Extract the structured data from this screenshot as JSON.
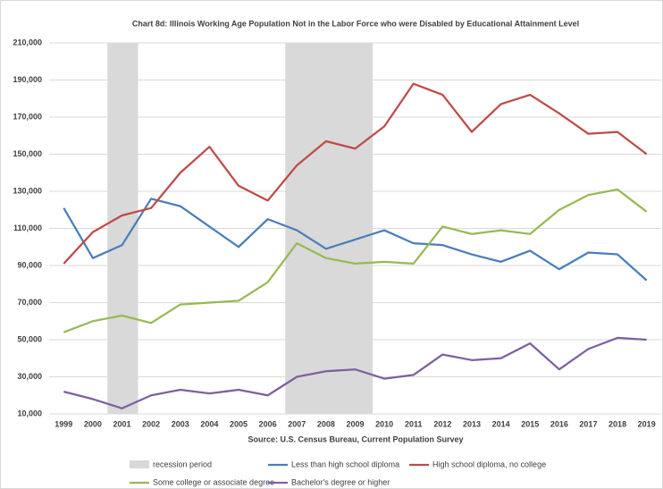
{
  "chart_data": {
    "type": "line",
    "title": "Chart 8d:  Illinois Working Age Population Not in the Labor Force who were Disabled by Educational Attainment Level",
    "source": "Source: U.S. Census Bureau, Current Population Survey",
    "x": [
      1999,
      2000,
      2001,
      2002,
      2003,
      2004,
      2005,
      2006,
      2007,
      2008,
      2009,
      2010,
      2011,
      2012,
      2013,
      2014,
      2015,
      2016,
      2017,
      2018,
      2019
    ],
    "xlim": [
      1998.5,
      2019.5
    ],
    "ylim": [
      10000,
      210000
    ],
    "yticks": [
      {
        "value": 10000,
        "label": "10,000"
      },
      {
        "value": 30000,
        "label": "30,000"
      },
      {
        "value": 50000,
        "label": "50,000"
      },
      {
        "value": 70000,
        "label": "70,000"
      },
      {
        "value": 90000,
        "label": "90,000"
      },
      {
        "value": 110000,
        "label": "110,000"
      },
      {
        "value": 130000,
        "label": "130,000"
      },
      {
        "value": 150000,
        "label": "150,000"
      },
      {
        "value": 170000,
        "label": "170,000"
      },
      {
        "value": 190000,
        "label": "190,000"
      },
      {
        "value": 210000,
        "label": "210,000"
      }
    ],
    "grid": true,
    "recession": {
      "name": "recession period",
      "color": "#d9d9d9",
      "periods": [
        [
          2000.5,
          2001.55
        ],
        [
          2006.6,
          2009.6
        ]
      ]
    },
    "series": [
      {
        "name": "Less than high school diploma",
        "color": "#4a7ebb",
        "values": [
          121000,
          94000,
          101000,
          126000,
          122000,
          111000,
          100000,
          115000,
          109000,
          99000,
          104000,
          109000,
          102000,
          101000,
          96000,
          92000,
          98000,
          88000,
          97000,
          96000,
          82000
        ]
      },
      {
        "name": "High school diploma, no college",
        "color": "#be4b48",
        "values": [
          91000,
          108000,
          117000,
          121000,
          140000,
          154000,
          133000,
          125000,
          144000,
          157000,
          153000,
          165000,
          188000,
          182000,
          162000,
          177000,
          182000,
          172000,
          161000,
          162000,
          150000
        ]
      },
      {
        "name": "Some college or associate degree",
        "color": "#98b954",
        "values": [
          54000,
          60000,
          63000,
          59000,
          69000,
          70000,
          71000,
          81000,
          102000,
          94000,
          91000,
          92000,
          91000,
          111000,
          107000,
          109000,
          107000,
          120000,
          128000,
          131000,
          119000
        ]
      },
      {
        "name": "Bachelor's degree or higher",
        "color": "#7d60a0",
        "values": [
          22000,
          18000,
          13000,
          20000,
          23000,
          21000,
          23000,
          20000,
          30000,
          33000,
          34000,
          29000,
          31000,
          42000,
          39000,
          40000,
          48000,
          34000,
          45000,
          51000,
          50000
        ]
      }
    ]
  }
}
